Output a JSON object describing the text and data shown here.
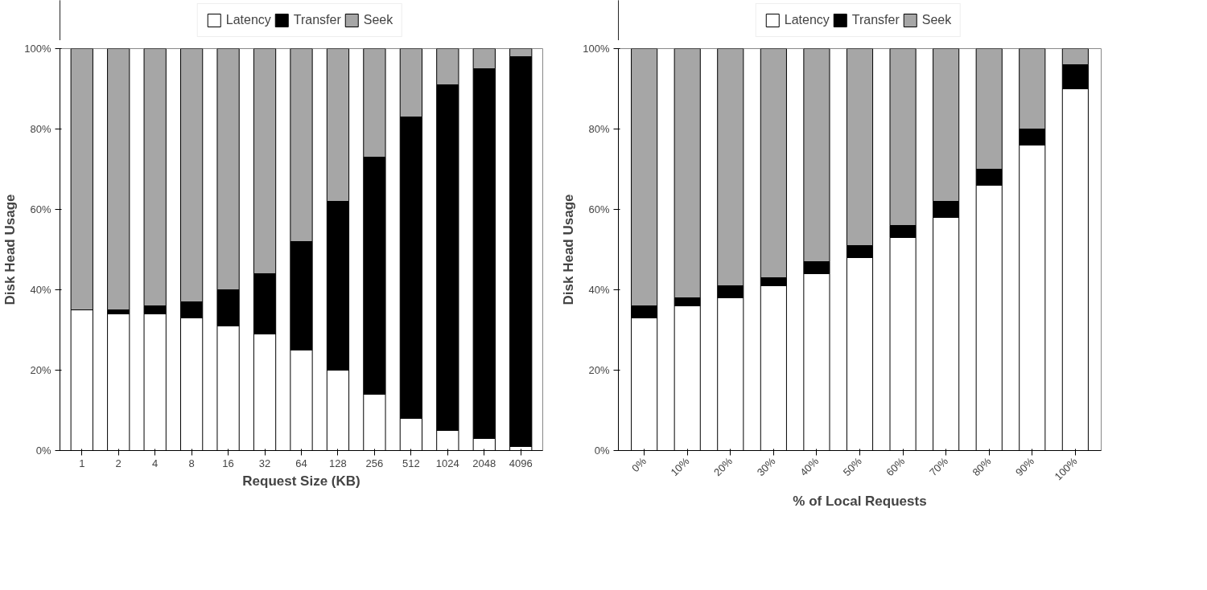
{
  "chart_data": [
    {
      "type": "bar",
      "stacked": true,
      "xlabel": "Request Size (KB)",
      "ylabel": "Disk Head Usage",
      "categories": [
        "1",
        "2",
        "4",
        "8",
        "16",
        "32",
        "64",
        "128",
        "256",
        "512",
        "1024",
        "2048",
        "4096"
      ],
      "ylim": [
        0,
        100
      ],
      "yticks": [
        {
          "value": 0,
          "label": "0%"
        },
        {
          "value": 20,
          "label": "20%"
        },
        {
          "value": 40,
          "label": "40%"
        },
        {
          "value": 60,
          "label": "60%"
        },
        {
          "value": 80,
          "label": "80%"
        },
        {
          "value": 100,
          "label": "100%"
        }
      ],
      "grid": false,
      "legend": "top",
      "series": [
        {
          "name": "Latency",
          "color": "#ffffff",
          "values": [
            35,
            34,
            34,
            33,
            31,
            29,
            25,
            20,
            14,
            8,
            5,
            3,
            1
          ]
        },
        {
          "name": "Transfer",
          "color": "#000000",
          "values": [
            0,
            1,
            2,
            4,
            9,
            15,
            27,
            42,
            59,
            75,
            86,
            92,
            97
          ]
        },
        {
          "name": "Seek",
          "color": "#a6a6a6",
          "values": [
            65,
            65,
            64,
            63,
            60,
            56,
            48,
            38,
            27,
            17,
            9,
            5,
            2
          ]
        }
      ]
    },
    {
      "type": "bar",
      "stacked": true,
      "xlabel": "% of Local Requests",
      "ylabel": "Disk Head Usage",
      "categories": [
        "0%",
        "10%",
        "20%",
        "30%",
        "40%",
        "50%",
        "60%",
        "70%",
        "80%",
        "90%",
        "100%"
      ],
      "ylim": [
        0,
        100
      ],
      "yticks": [
        {
          "value": 0,
          "label": "0%"
        },
        {
          "value": 20,
          "label": "20%"
        },
        {
          "value": 40,
          "label": "40%"
        },
        {
          "value": 60,
          "label": "60%"
        },
        {
          "value": 80,
          "label": "80%"
        },
        {
          "value": 100,
          "label": "100%"
        }
      ],
      "grid": false,
      "legend": "top",
      "series": [
        {
          "name": "Latency",
          "color": "#ffffff",
          "values": [
            33,
            36,
            38,
            41,
            44,
            48,
            53,
            58,
            66,
            76,
            90
          ]
        },
        {
          "name": "Transfer",
          "color": "#000000",
          "values": [
            3,
            2,
            3,
            2,
            3,
            3,
            3,
            4,
            4,
            4,
            6
          ]
        },
        {
          "name": "Seek",
          "color": "#a6a6a6",
          "values": [
            64,
            62,
            59,
            57,
            53,
            49,
            44,
            38,
            30,
            20,
            4
          ]
        }
      ]
    }
  ]
}
